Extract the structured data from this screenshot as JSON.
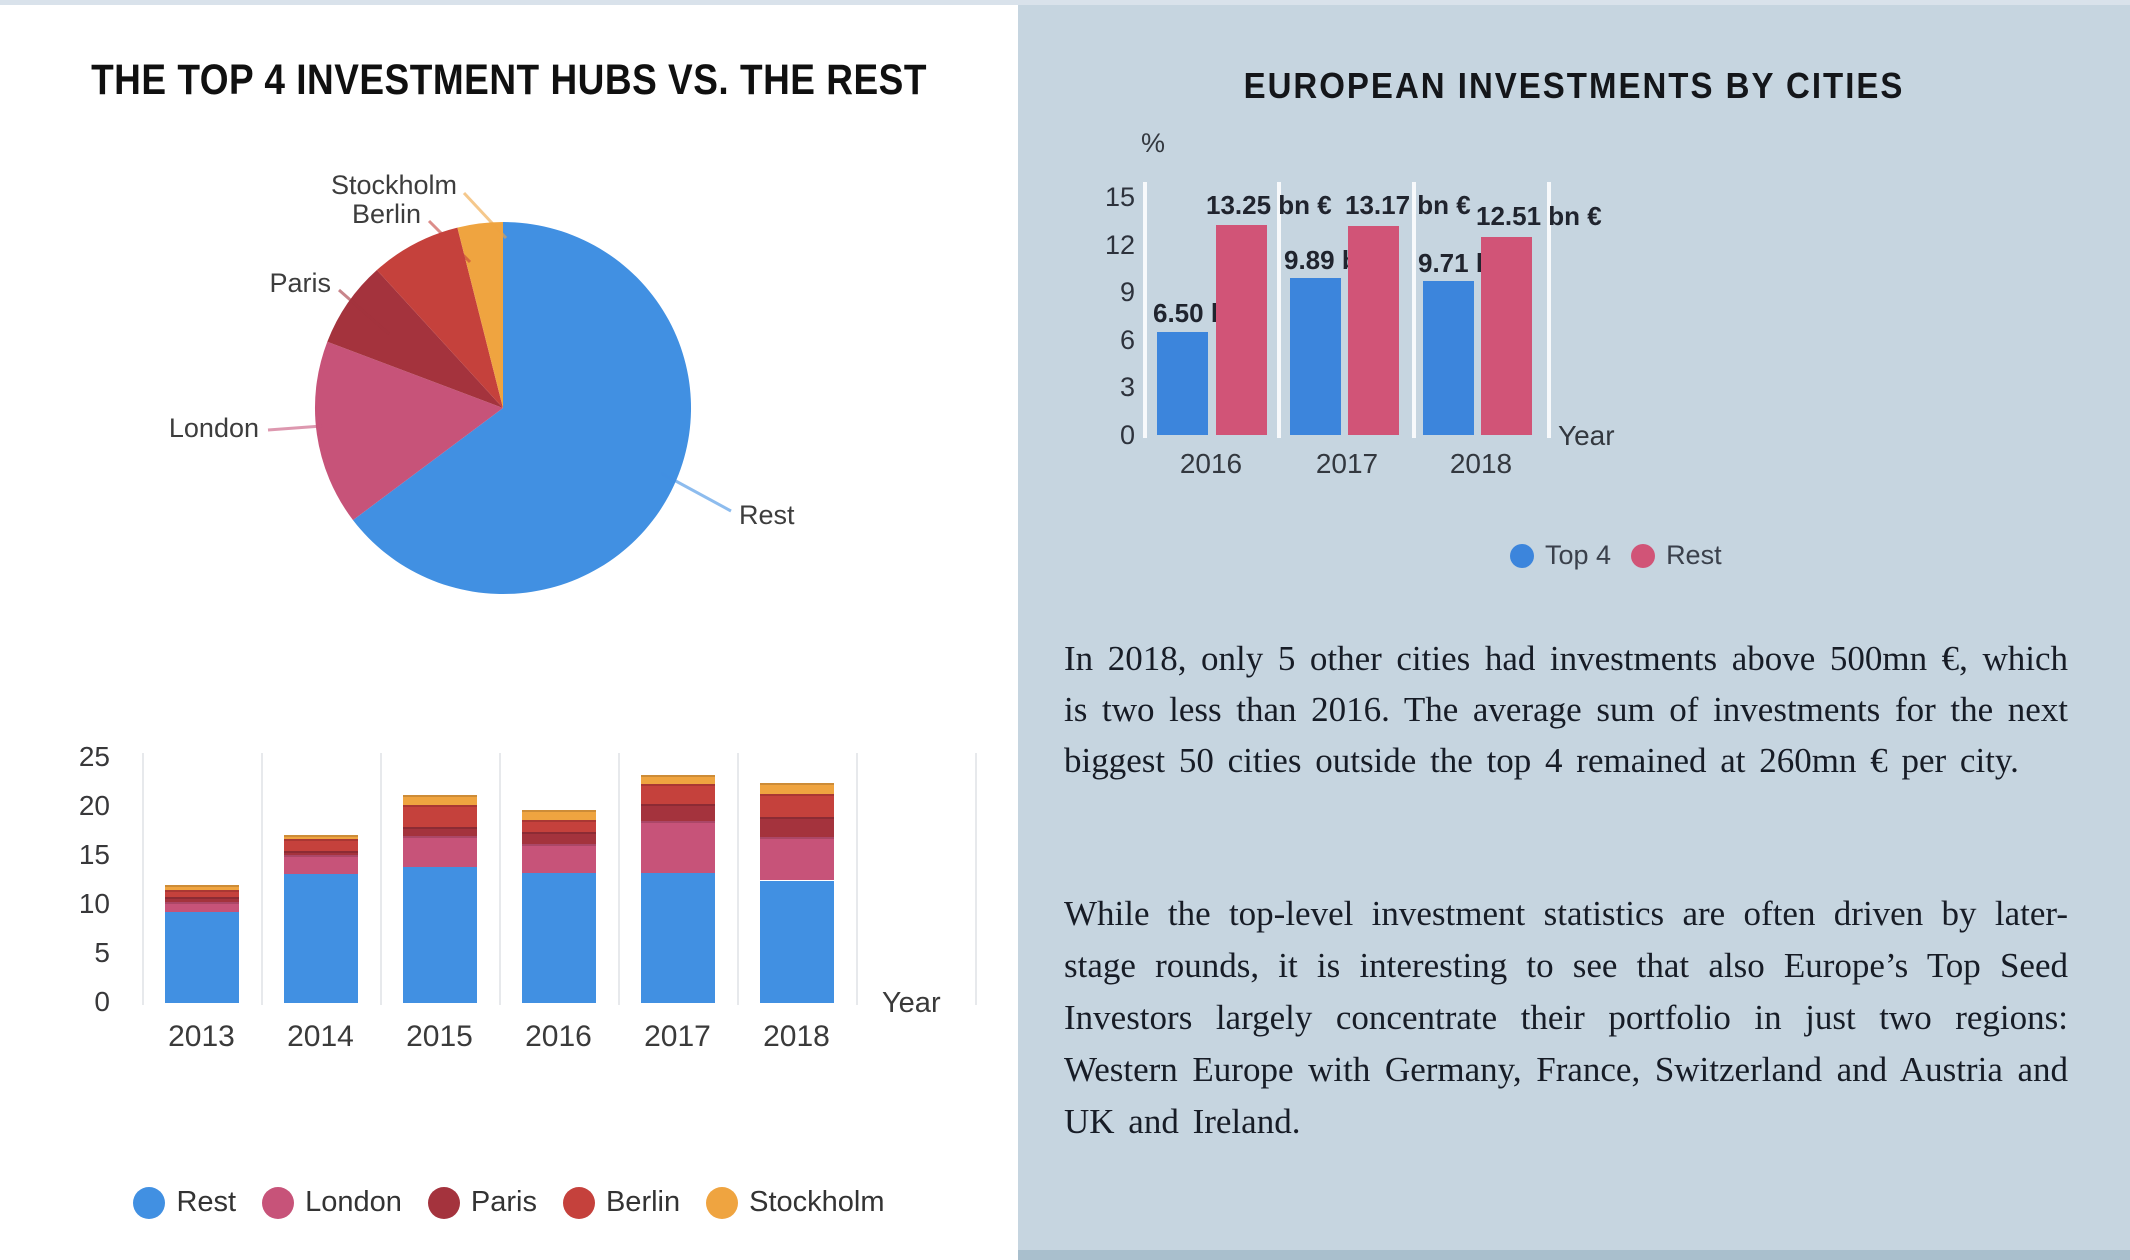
{
  "left_panel": {
    "title": "THE TOP 4 INVESTMENT HUBS VS. THE REST"
  },
  "right_panel": {
    "title": "EUROPEAN INVESTMENTS BY CITIES",
    "paragraphs": [
      "In 2018, only 5 other cities had investments above 500mn €, which is two less than 2016. The average sum of investments for the next biggest 50 cities outside the top 4 remained at 260mn € per  city.",
      "While the top-level investment statistics are often driven by later-stage rounds, it is interesting to see that also Europe’s Top Seed Investors largely concentrate their portfolio in just two regions: Western Europe with Germany, France, Switzerland and Austria and UK and Ireland."
    ]
  },
  "colors": {
    "rest_blue": "#4190e2",
    "london_pink": "#c75379",
    "paris_dark_red": "#a4333d",
    "berlin_red": "#c5413c",
    "stockholm_orange": "#efa440",
    "top4_blue": "#3c85dc",
    "rest_rose": "#d15477",
    "right_panel_bg": "#c6d5e0"
  },
  "chart_data": [
    {
      "id": "top4-pie",
      "type": "pie",
      "labels": [
        "Rest",
        "London",
        "Paris",
        "Berlin",
        "Stockholm"
      ],
      "values": [
        64.7,
        16.1,
        7.5,
        7.8,
        3.9
      ],
      "colors": [
        "#4190e2",
        "#c75379",
        "#a4333d",
        "#c5413c",
        "#efa440"
      ],
      "start_angle": "12 o'clock, clockwise",
      "units": "percent share (estimated from slice angles)"
    },
    {
      "id": "hubs-stacked-bar",
      "type": "bar",
      "stacked": true,
      "categories": [
        "2013",
        "2014",
        "2015",
        "2016",
        "2017",
        "2018"
      ],
      "series": [
        {
          "name": "Rest",
          "color": "#4190e2",
          "values": [
            9.3,
            13.2,
            13.9,
            13.3,
            13.3,
            12.5
          ]
        },
        {
          "name": "London",
          "color": "#c75379",
          "values": [
            1.0,
            1.9,
            3.1,
            2.9,
            5.3,
            4.4
          ]
        },
        {
          "name": "Paris",
          "color": "#a4333d",
          "values": [
            0.5,
            0.4,
            1.0,
            1.2,
            1.7,
            2.1
          ]
        },
        {
          "name": "Berlin",
          "color": "#c5413c",
          "values": [
            0.7,
            1.2,
            2.2,
            1.3,
            2.0,
            2.3
          ]
        },
        {
          "name": "Stockholm",
          "color": "#efa440",
          "values": [
            0.5,
            0.4,
            1.0,
            1.0,
            1.0,
            1.2
          ]
        }
      ],
      "xlabel": "Year",
      "ylim": [
        0,
        25
      ],
      "yticks": [
        0,
        5,
        10,
        15,
        20,
        25
      ],
      "grid": "vertical category separators",
      "legend_position": "bottom"
    },
    {
      "id": "investments-grouped-bar",
      "type": "bar",
      "stacked": false,
      "categories": [
        "2016",
        "2017",
        "2018"
      ],
      "series": [
        {
          "name": "Top 4",
          "color": "#3c85dc",
          "values": [
            6.5,
            9.89,
            9.71
          ],
          "value_labels": [
            "6.50 bn €",
            "9.89 bn €",
            "9.71 bn €"
          ]
        },
        {
          "name": "Rest",
          "color": "#d15477",
          "values": [
            13.25,
            13.17,
            12.51
          ],
          "value_labels": [
            "13.25 bn €",
            "13.17 bn €",
            "12.51 bn €"
          ]
        }
      ],
      "ylabel": "%",
      "xlabel": "Year",
      "ylim": [
        0,
        15
      ],
      "yticks": [
        0,
        3,
        6,
        9,
        12,
        15
      ],
      "grid": "vertical white category separators",
      "legend_position": "bottom"
    }
  ]
}
